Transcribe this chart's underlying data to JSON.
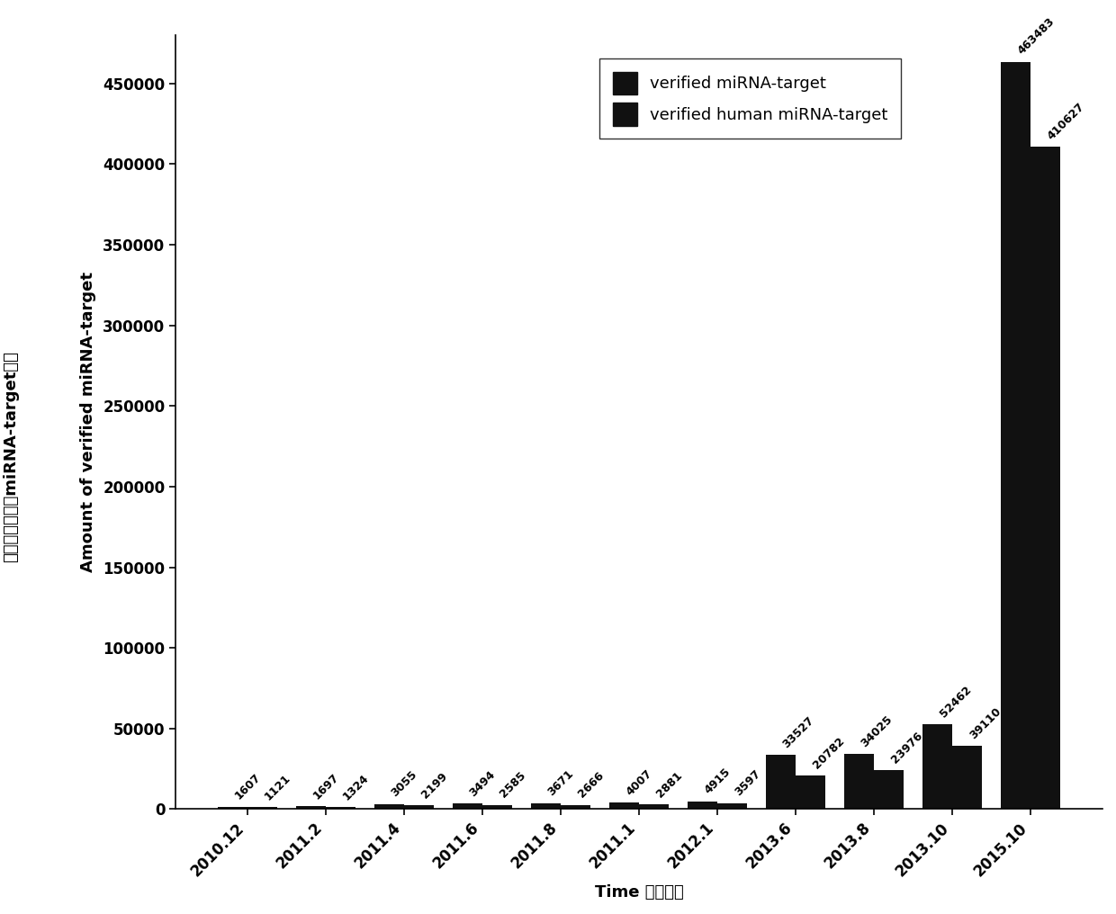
{
  "categories": [
    "2010.12",
    "2011.2",
    "2011.4",
    "2011.6",
    "2011.8",
    "2011.1",
    "2012.1",
    "2013.6",
    "2013.8",
    "2013.10",
    "2015.10"
  ],
  "values_total": [
    1607,
    1697,
    3055,
    3494,
    3671,
    4007,
    4915,
    33527,
    34025,
    52462,
    463483
  ],
  "values_human": [
    1121,
    1324,
    2199,
    2585,
    2666,
    2881,
    3597,
    20782,
    23976,
    39110,
    410627
  ],
  "bar_color": "#111111",
  "ylabel_en": "Amount of verified miRNA-target",
  "ylabel_cn": "已被实验验证过miRNA-target数量",
  "xlabel": "Time 发布时间",
  "legend_labels": [
    "verified miRNA-target",
    "verified human miRNA-target"
  ],
  "ylim": [
    0,
    480000
  ],
  "yticks": [
    0,
    50000,
    100000,
    150000,
    200000,
    250000,
    300000,
    350000,
    400000,
    450000
  ],
  "bar_width": 0.38,
  "background_color": "#ffffff",
  "tick_fontsize": 12,
  "label_fontsize": 13,
  "annotation_fontsize": 9
}
